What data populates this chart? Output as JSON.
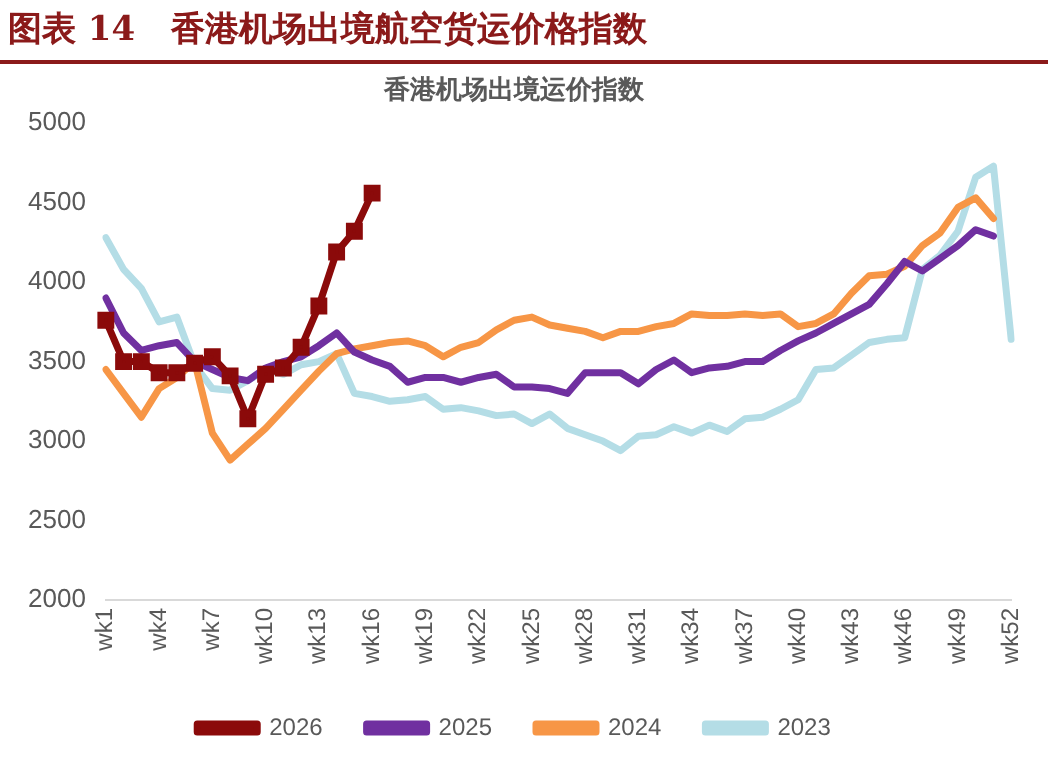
{
  "chart_data": {
    "type": "line",
    "title": "图表 14   香港机场出境航空货运价格指数",
    "subtitle": "香港机场出境运价指数",
    "categories": [
      "wk1",
      null,
      null,
      "wk4",
      null,
      null,
      "wk7",
      null,
      null,
      "wk10",
      null,
      null,
      "wk13",
      null,
      null,
      "wk16",
      null,
      null,
      "wk19",
      null,
      null,
      "wk22",
      null,
      null,
      "wk25",
      null,
      null,
      "wk28",
      null,
      null,
      "wk31",
      null,
      null,
      "wk34",
      null,
      null,
      "wk37",
      null,
      null,
      "wk40",
      null,
      null,
      "wk43",
      null,
      null,
      "wk46",
      null,
      null,
      "wk49",
      null,
      null,
      "wk52"
    ],
    "series": [
      {
        "name": "2023",
        "color": "#b4dde6",
        "values": [
          4280,
          4080,
          3960,
          3750,
          3780,
          3480,
          3330,
          3320,
          3380,
          3450,
          3420,
          3480,
          3500,
          3550,
          3300,
          3280,
          3250,
          3260,
          3280,
          3200,
          3210,
          3190,
          3160,
          3170,
          3110,
          3170,
          3080,
          3040,
          3000,
          2940,
          3030,
          3040,
          3090,
          3050,
          3100,
          3060,
          3140,
          3150,
          3200,
          3260,
          3450,
          3460,
          3540,
          3620,
          3640,
          3650,
          4080,
          4170,
          4320,
          4660,
          4730,
          3640
        ]
      },
      {
        "name": "2024",
        "color": "#f79646",
        "values": [
          3450,
          3300,
          3150,
          3330,
          3400,
          3500,
          3050,
          2880,
          2980,
          3080,
          3200,
          3320,
          3440,
          3550,
          3580,
          3600,
          3620,
          3630,
          3600,
          3530,
          3590,
          3620,
          3700,
          3760,
          3780,
          3730,
          3710,
          3690,
          3650,
          3690,
          3690,
          3720,
          3740,
          3800,
          3790,
          3790,
          3800,
          3790,
          3800,
          3720,
          3740,
          3800,
          3930,
          4040,
          4050,
          4100,
          4230,
          4310,
          4470,
          4530,
          4400,
          null
        ]
      },
      {
        "name": "2025",
        "color": "#7030a0",
        "values": [
          3900,
          3680,
          3570,
          3600,
          3620,
          3500,
          3450,
          3400,
          3380,
          3460,
          3500,
          3530,
          3600,
          3680,
          3560,
          3510,
          3470,
          3370,
          3400,
          3400,
          3370,
          3400,
          3420,
          3340,
          3340,
          3330,
          3300,
          3430,
          3430,
          3430,
          3360,
          3450,
          3510,
          3430,
          3460,
          3470,
          3500,
          3500,
          3570,
          3630,
          3680,
          3740,
          3800,
          3860,
          3990,
          4130,
          4070,
          4150,
          4230,
          4330,
          4290,
          null
        ]
      },
      {
        "name": "2026",
        "color": "#8b0a0a",
        "marker": "square",
        "values": [
          3760,
          3500,
          3500,
          3430,
          3430,
          3490,
          3530,
          3410,
          3140,
          3420,
          3460,
          3590,
          3850,
          4190,
          4320,
          4560,
          null,
          null,
          null,
          null,
          null,
          null,
          null,
          null,
          null,
          null,
          null,
          null,
          null,
          null,
          null,
          null,
          null,
          null,
          null,
          null,
          null,
          null,
          null,
          null,
          null,
          null,
          null,
          null,
          null,
          null,
          null,
          null,
          null,
          null,
          null,
          null
        ]
      }
    ],
    "ylim": [
      2000,
      5000
    ],
    "yticks": [
      2000,
      2500,
      3000,
      3500,
      4000,
      4500,
      5000
    ],
    "grid": false,
    "legend": "bottom",
    "marker": "none",
    "line_style": "solid"
  }
}
